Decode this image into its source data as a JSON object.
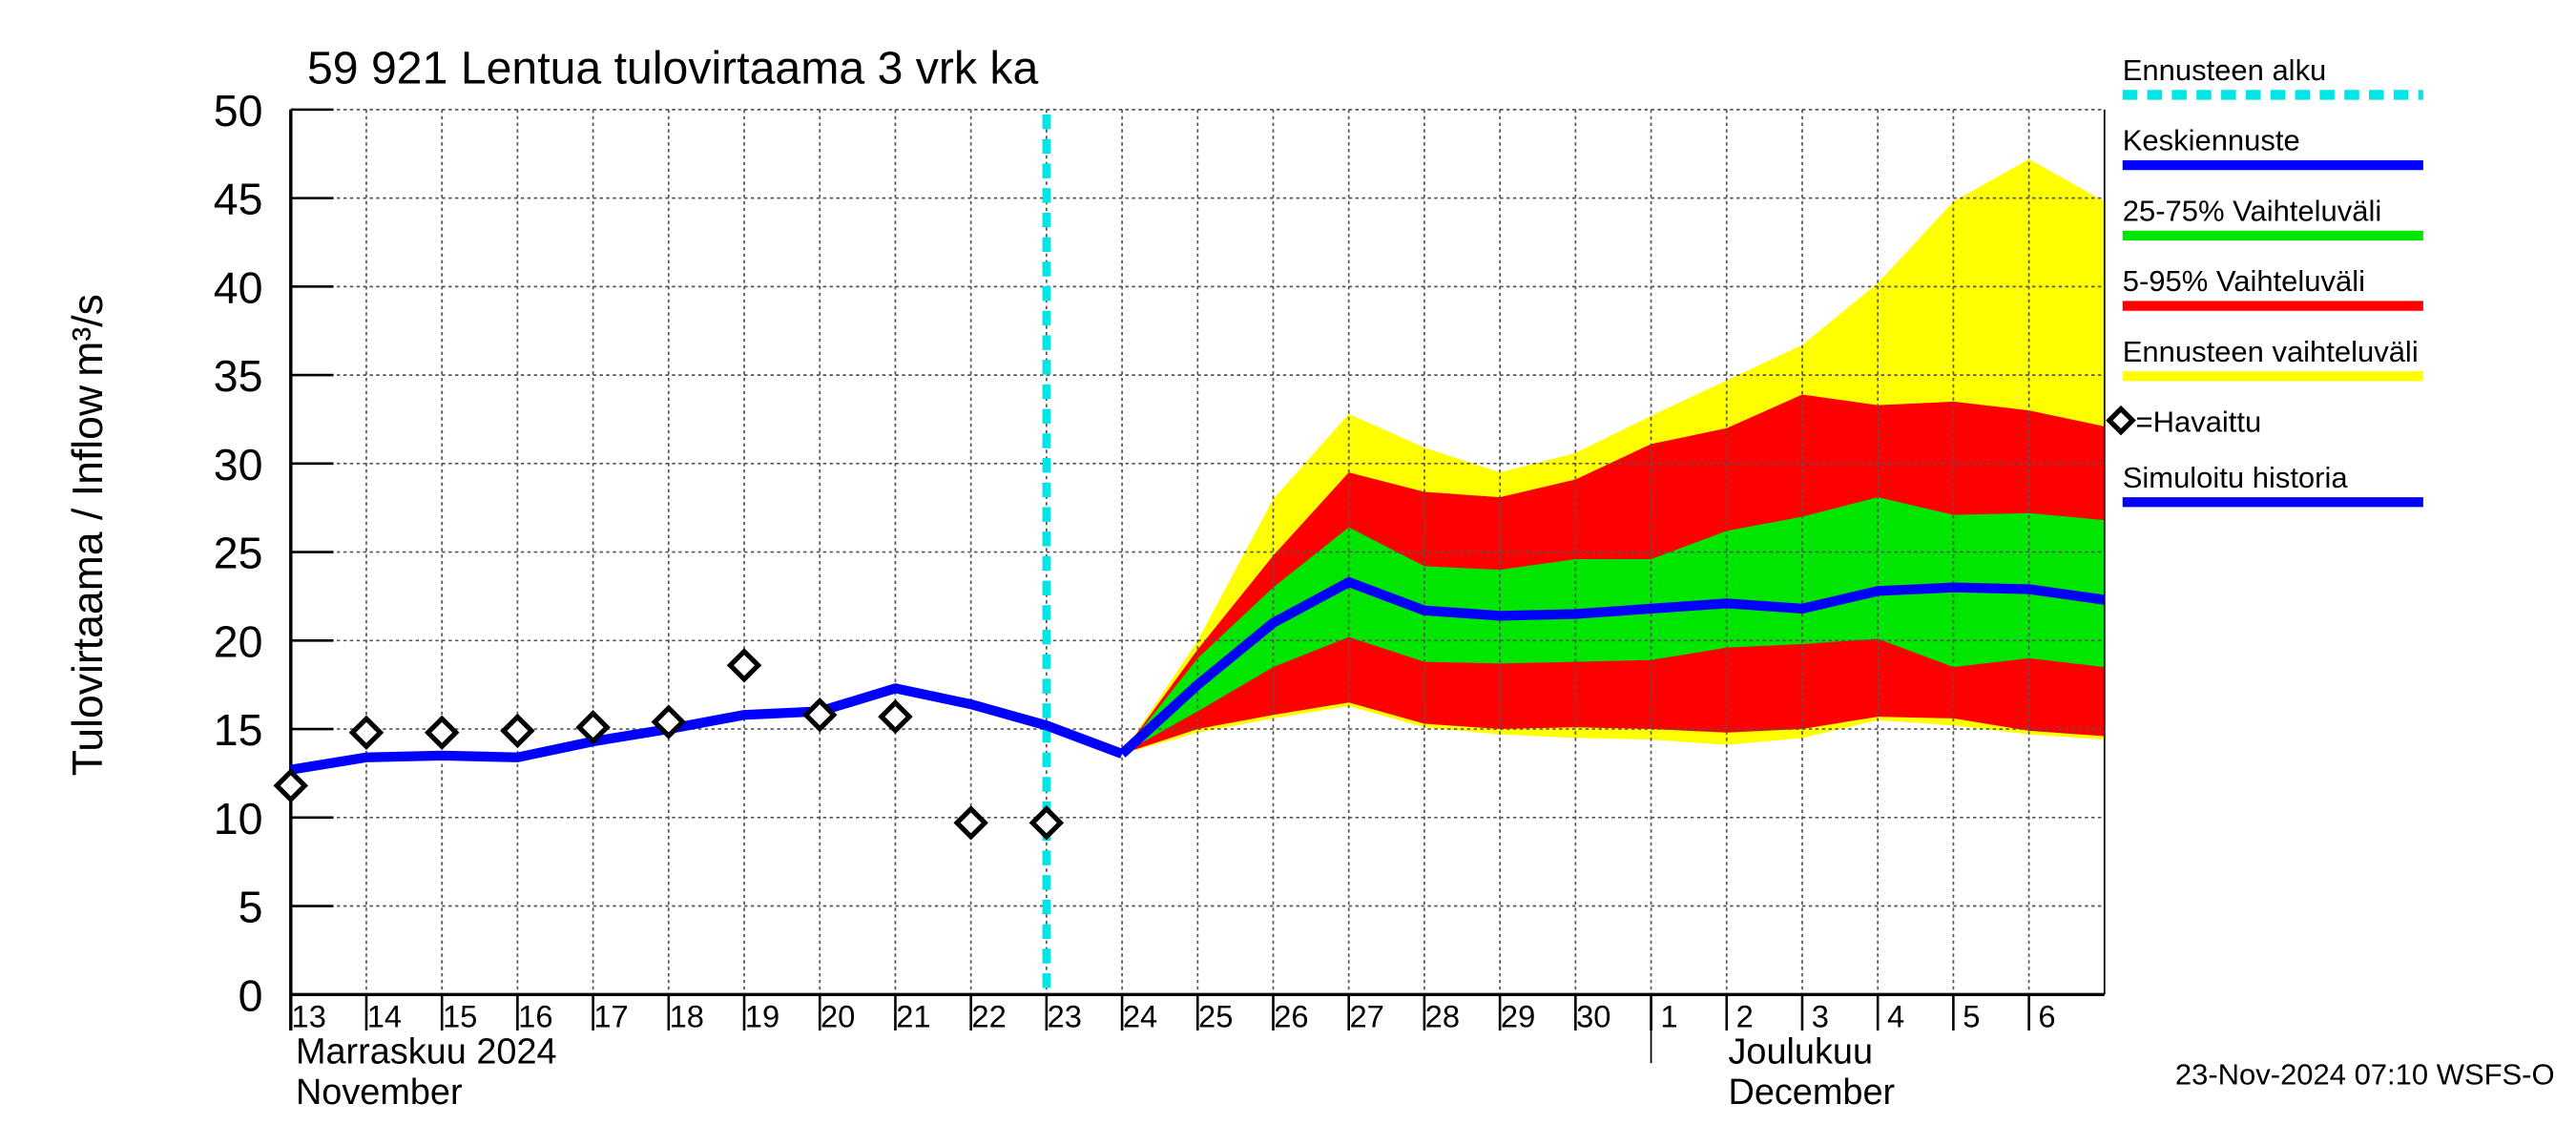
{
  "chart_data": {
    "type": "line",
    "title": "59 921 Lentua tulovirtaama 3 vrk ka",
    "y_label": "Tulovirtaama / Inflow",
    "y_unit": "m³/s",
    "footer": "23-Nov-2024 07:10 WSFS-O",
    "month_labels": [
      [
        "Marraskuu 2024",
        "November"
      ],
      [
        "Joulukuu",
        "December"
      ]
    ],
    "xlim": [
      "2024-11-13",
      "2024-12-07"
    ],
    "xticks": [
      {
        "value": "2024-11-13",
        "label": "13"
      },
      {
        "value": "2024-11-14",
        "label": "14"
      },
      {
        "value": "2024-11-15",
        "label": "15"
      },
      {
        "value": "2024-11-16",
        "label": "16"
      },
      {
        "value": "2024-11-17",
        "label": "17"
      },
      {
        "value": "2024-11-18",
        "label": "18"
      },
      {
        "value": "2024-11-19",
        "label": "19"
      },
      {
        "value": "2024-11-20",
        "label": "20"
      },
      {
        "value": "2024-11-21",
        "label": "21"
      },
      {
        "value": "2024-11-22",
        "label": "22"
      },
      {
        "value": "2024-11-23",
        "label": "23"
      },
      {
        "value": "2024-11-24",
        "label": "24"
      },
      {
        "value": "2024-11-25",
        "label": "25"
      },
      {
        "value": "2024-11-26",
        "label": "26"
      },
      {
        "value": "2024-11-27",
        "label": "27"
      },
      {
        "value": "2024-11-28",
        "label": "28"
      },
      {
        "value": "2024-11-29",
        "label": "29"
      },
      {
        "value": "2024-11-30",
        "label": "30"
      },
      {
        "value": "2024-12-01",
        "label": "1"
      },
      {
        "value": "2024-12-02",
        "label": "2"
      },
      {
        "value": "2024-12-03",
        "label": "3"
      },
      {
        "value": "2024-12-04",
        "label": "4"
      },
      {
        "value": "2024-12-05",
        "label": "5"
      },
      {
        "value": "2024-12-06",
        "label": "6"
      }
    ],
    "ylim": [
      0,
      50
    ],
    "yticks": [
      0,
      5,
      10,
      15,
      20,
      25,
      30,
      35,
      40,
      45,
      50
    ],
    "grid": true,
    "forecast_start": {
      "name": "Ennusteen alku",
      "x": "2024-11-23",
      "color": "#00e5e5"
    },
    "bands": [
      {
        "name": "Ennusteen vaihteluväli",
        "color": "#ffff00",
        "x": [
          "2024-11-24",
          "2024-11-25",
          "2024-11-26",
          "2024-11-27",
          "2024-11-28",
          "2024-11-29",
          "2024-11-30",
          "2024-12-01",
          "2024-12-02",
          "2024-12-03",
          "2024-12-04",
          "2024-12-05",
          "2024-12-06",
          "2024-12-07"
        ],
        "high": [
          13.6,
          20,
          28,
          32.8,
          30.9,
          29.5,
          30.6,
          32.7,
          34.7,
          36.7,
          40.2,
          44.8,
          47.2,
          44.8
        ],
        "low": [
          13.6,
          14.8,
          15.6,
          16.3,
          15.1,
          14.7,
          14.5,
          14.4,
          14.1,
          14.5,
          15.5,
          15.2,
          14.7,
          14.4
        ]
      },
      {
        "name": "5-95% Vaihteluväli",
        "color": "#ff0000",
        "x": [
          "2024-11-24",
          "2024-11-25",
          "2024-11-26",
          "2024-11-27",
          "2024-11-28",
          "2024-11-29",
          "2024-11-30",
          "2024-12-01",
          "2024-12-02",
          "2024-12-03",
          "2024-12-04",
          "2024-12-05",
          "2024-12-06",
          "2024-12-07"
        ],
        "high": [
          13.6,
          19.5,
          24.8,
          29.5,
          28.4,
          28.1,
          29.1,
          31.1,
          32.0,
          33.9,
          33.3,
          33.5,
          33.0,
          32.1
        ],
        "low": [
          13.6,
          15.0,
          15.8,
          16.5,
          15.3,
          15.0,
          15.1,
          15.0,
          14.8,
          15.0,
          15.7,
          15.6,
          14.9,
          14.6
        ]
      },
      {
        "name": "25-75% Vaihteluväli",
        "color": "#00e600",
        "x": [
          "2024-11-24",
          "2024-11-25",
          "2024-11-26",
          "2024-11-27",
          "2024-11-28",
          "2024-11-29",
          "2024-11-30",
          "2024-12-01",
          "2024-12-02",
          "2024-12-03",
          "2024-12-04",
          "2024-12-05",
          "2024-12-06",
          "2024-12-07"
        ],
        "high": [
          13.6,
          19,
          23,
          26.4,
          24.2,
          24.0,
          24.6,
          24.6,
          26.2,
          27.0,
          28.1,
          27.1,
          27.2,
          26.8
        ],
        "low": [
          13.6,
          16,
          18.5,
          20.2,
          18.8,
          18.7,
          18.8,
          18.9,
          19.6,
          19.8,
          20.1,
          18.5,
          19.0,
          18.5
        ]
      }
    ],
    "series": [
      {
        "name": "Keskiennuste",
        "color": "#0000ff",
        "x": [
          "2024-11-24",
          "2024-11-25",
          "2024-11-26",
          "2024-11-27",
          "2024-11-28",
          "2024-11-29",
          "2024-11-30",
          "2024-12-01",
          "2024-12-02",
          "2024-12-03",
          "2024-12-04",
          "2024-12-05",
          "2024-12-06",
          "2024-12-07"
        ],
        "values": [
          13.6,
          17.5,
          21.0,
          23.3,
          21.7,
          21.4,
          21.5,
          21.8,
          22.1,
          21.8,
          22.8,
          23.0,
          22.9,
          22.3
        ]
      },
      {
        "name": "Simuloitu historia",
        "color": "#0000ff",
        "x": [
          "2024-11-13",
          "2024-11-14",
          "2024-11-15",
          "2024-11-16",
          "2024-11-17",
          "2024-11-18",
          "2024-11-19",
          "2024-11-20",
          "2024-11-21",
          "2024-11-22",
          "2024-11-23",
          "2024-11-24"
        ],
        "values": [
          12.7,
          13.4,
          13.5,
          13.4,
          14.3,
          15.0,
          15.8,
          16.0,
          17.3,
          16.4,
          15.2,
          13.6
        ]
      },
      {
        "name": "=Havaittu",
        "color": "#000000",
        "marker": "diamond",
        "x": [
          "2024-11-13",
          "2024-11-14",
          "2024-11-15",
          "2024-11-16",
          "2024-11-17",
          "2024-11-18",
          "2024-11-19",
          "2024-11-20",
          "2024-11-21",
          "2024-11-22",
          "2024-11-23"
        ],
        "values": [
          11.8,
          14.8,
          14.8,
          14.9,
          15.1,
          15.4,
          18.6,
          15.8,
          15.7,
          9.7,
          9.7
        ]
      }
    ]
  }
}
